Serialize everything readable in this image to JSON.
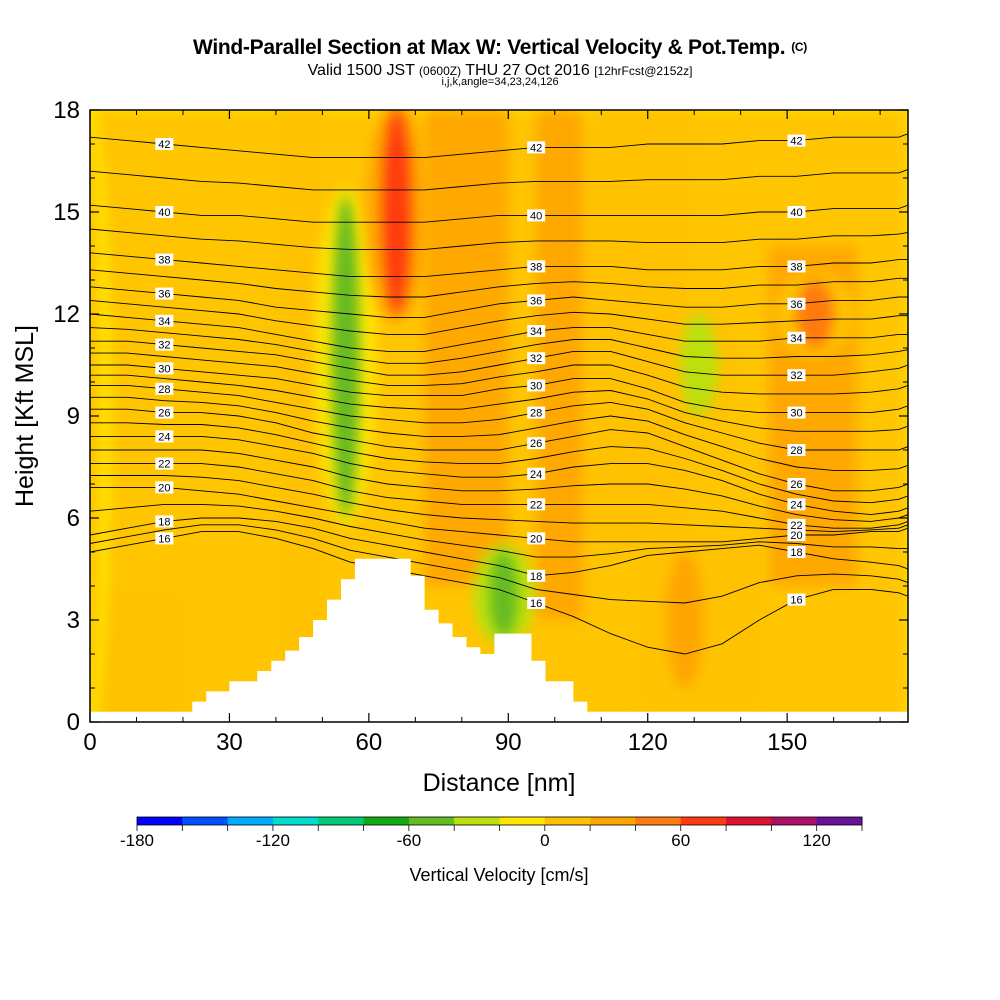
{
  "header": {
    "title": "Wind-Parallel Section at Max W: Vertical Velocity & Pot.Temp.",
    "copyright": "(C)",
    "valid_prefix": "Valid 1500 JST",
    "valid_utc": "(0600Z)",
    "valid_date": "THU 27 Oct 2016",
    "forecast": "[12hrFcst@2152z]",
    "indices": "i,j,k,angle=34,23,24,126"
  },
  "chart_data": {
    "type": "heatmap",
    "xlabel": "Distance [nm]",
    "ylabel": "Height [Kft MSL]",
    "xlim": [
      0,
      176
    ],
    "ylim": [
      0,
      18
    ],
    "x_ticks": [
      0,
      30,
      60,
      90,
      120,
      150
    ],
    "y_ticks": [
      0,
      3,
      6,
      9,
      12,
      15,
      18
    ],
    "x_tick_labels": [
      "0",
      "30",
      "60",
      "90",
      "120",
      "150"
    ],
    "y_tick_labels": [
      "0",
      "3",
      "6",
      "9",
      "12",
      "15",
      "18"
    ],
    "colorbar": {
      "label": "Vertical Velocity [cm/s]",
      "min": -180,
      "max": 140,
      "step": 20,
      "tick_values": [
        -180,
        -120,
        -60,
        0,
        60,
        120
      ],
      "tick_labels": [
        "-180",
        "-120",
        "-60",
        "0",
        "60",
        "120"
      ],
      "colors": [
        "#0000ff",
        "#0050ff",
        "#00aaff",
        "#00ddcc",
        "#00cc77",
        "#11aa11",
        "#66bb22",
        "#bbe011",
        "#ffe600",
        "#ffc200",
        "#ffa500",
        "#ff7a10",
        "#ff3a10",
        "#dd1133",
        "#aa1166",
        "#6a1199"
      ]
    },
    "vertical_velocity_features": [
      {
        "x": 0,
        "w": 2,
        "y0": 0,
        "y1": 18,
        "value": 10,
        "note": "broad weak ascent background"
      },
      {
        "x": 55,
        "w": 3,
        "y0": 6,
        "y1": 15.5,
        "value": -50
      },
      {
        "x": 66,
        "w": 3,
        "y0": 12,
        "y1": 18,
        "value": 60
      },
      {
        "x": 89,
        "w": 3,
        "y0": 2.5,
        "y1": 5,
        "value": -60
      },
      {
        "x": 128,
        "w": 4,
        "y0": 1,
        "y1": 5,
        "value": 30
      },
      {
        "x": 156,
        "w": 4,
        "y0": 11,
        "y1": 13,
        "value": 45
      },
      {
        "x": 131,
        "w": 4,
        "y0": 9,
        "y1": 12,
        "value": -25
      }
    ],
    "terrain_profile": {
      "x": [
        0,
        19,
        22,
        25,
        30,
        36,
        39,
        42,
        45,
        48,
        51,
        54,
        57,
        64,
        69,
        72,
        75,
        78,
        81,
        84,
        87,
        91,
        95,
        98,
        104,
        107,
        176
      ],
      "height": [
        0.3,
        0.3,
        0.6,
        0.9,
        1.2,
        1.5,
        1.8,
        2.1,
        2.5,
        3.0,
        3.6,
        4.2,
        4.8,
        4.8,
        4.3,
        3.3,
        2.9,
        2.5,
        2.2,
        2.0,
        2.6,
        2.6,
        1.8,
        1.2,
        0.6,
        0.3,
        0.3
      ]
    },
    "isentropes": [
      {
        "label": "16",
        "height": [
          5.0,
          5.2,
          5.4,
          5.6,
          5.6,
          5.4,
          5.1,
          4.7,
          4.5,
          4.3,
          4.1,
          3.9,
          3.5,
          3.1,
          2.6,
          2.2,
          2.0,
          2.3,
          3.0,
          3.6,
          3.9,
          3.9,
          3.8,
          3.7
        ]
      },
      {
        "label": "18",
        "height": [
          5.5,
          5.7,
          5.9,
          6.0,
          6.0,
          5.9,
          5.7,
          5.4,
          5.2,
          5.0,
          4.8,
          4.6,
          4.3,
          4.4,
          4.6,
          4.9,
          5.0,
          5.1,
          5.2,
          5.0,
          4.8,
          4.7,
          4.6,
          4.5
        ]
      },
      {
        "label": "20",
        "height": [
          6.9,
          6.9,
          6.9,
          6.8,
          6.7,
          6.5,
          6.3,
          6.1,
          5.9,
          5.7,
          5.6,
          5.5,
          5.4,
          5.3,
          5.3,
          5.3,
          5.3,
          5.3,
          5.4,
          5.5,
          5.5,
          5.6,
          5.6,
          5.7
        ]
      },
      {
        "label": "22",
        "height": [
          7.6,
          7.6,
          7.6,
          7.6,
          7.5,
          7.3,
          7.1,
          6.8,
          6.6,
          6.5,
          6.4,
          6.4,
          6.4,
          6.4,
          6.4,
          6.4,
          6.3,
          6.2,
          6.0,
          5.8,
          5.7,
          5.7,
          5.8,
          5.9
        ]
      },
      {
        "label": "24",
        "height": [
          8.4,
          8.4,
          8.4,
          8.4,
          8.3,
          8.1,
          7.9,
          7.6,
          7.4,
          7.3,
          7.2,
          7.2,
          7.3,
          7.5,
          7.6,
          7.6,
          7.4,
          7.1,
          6.7,
          6.4,
          6.2,
          6.1,
          6.2,
          6.3
        ]
      },
      {
        "label": "26",
        "height": [
          9.2,
          9.2,
          9.1,
          9.1,
          9.0,
          8.8,
          8.5,
          8.3,
          8.1,
          8.0,
          8.0,
          8.0,
          8.2,
          8.4,
          8.6,
          8.5,
          8.1,
          7.7,
          7.3,
          7.0,
          6.8,
          6.8,
          6.9,
          7.0
        ]
      },
      {
        "label": "28",
        "height": [
          9.9,
          9.9,
          9.8,
          9.7,
          9.6,
          9.4,
          9.2,
          9.0,
          8.9,
          8.8,
          8.8,
          8.9,
          9.1,
          9.3,
          9.4,
          9.2,
          8.8,
          8.5,
          8.2,
          8.0,
          8.0,
          8.0,
          8.0,
          8.1
        ]
      },
      {
        "label": "30",
        "height": [
          10.5,
          10.5,
          10.4,
          10.3,
          10.2,
          10.1,
          9.9,
          9.7,
          9.6,
          9.6,
          9.6,
          9.8,
          9.9,
          10.1,
          10.1,
          9.8,
          9.4,
          9.2,
          9.1,
          9.1,
          9.1,
          9.1,
          9.2,
          9.3
        ]
      },
      {
        "label": "32",
        "height": [
          11.2,
          11.2,
          11.1,
          11.0,
          10.9,
          10.8,
          10.6,
          10.4,
          10.2,
          10.2,
          10.3,
          10.5,
          10.7,
          10.9,
          10.9,
          10.6,
          10.3,
          10.2,
          10.2,
          10.2,
          10.2,
          10.3,
          10.4,
          10.5
        ]
      },
      {
        "label": "34",
        "height": [
          12.0,
          11.9,
          11.8,
          11.7,
          11.6,
          11.4,
          11.2,
          11.0,
          10.9,
          10.9,
          11.1,
          11.3,
          11.5,
          11.6,
          11.6,
          11.4,
          11.2,
          11.2,
          11.2,
          11.3,
          11.3,
          11.3,
          11.4,
          11.4
        ]
      },
      {
        "label": "36",
        "height": [
          12.8,
          12.7,
          12.6,
          12.5,
          12.4,
          12.2,
          12.1,
          12.0,
          11.9,
          11.9,
          12.1,
          12.3,
          12.4,
          12.5,
          12.4,
          12.3,
          12.2,
          12.2,
          12.3,
          12.3,
          12.4,
          12.4,
          12.5,
          12.5
        ]
      },
      {
        "label": "38",
        "height": [
          13.8,
          13.7,
          13.6,
          13.5,
          13.4,
          13.3,
          13.2,
          13.1,
          13.1,
          13.1,
          13.2,
          13.3,
          13.4,
          13.4,
          13.4,
          13.3,
          13.3,
          13.3,
          13.4,
          13.4,
          13.5,
          13.5,
          13.6,
          13.6
        ]
      },
      {
        "label": "40",
        "height": [
          15.2,
          15.1,
          15.0,
          14.9,
          14.9,
          14.8,
          14.7,
          14.7,
          14.7,
          14.7,
          14.8,
          14.9,
          14.9,
          14.9,
          14.9,
          14.9,
          14.9,
          14.9,
          15.0,
          15.0,
          15.1,
          15.1,
          15.1,
          15.2
        ]
      },
      {
        "label": "42",
        "height": [
          17.2,
          17.1,
          17.0,
          16.9,
          16.8,
          16.7,
          16.6,
          16.6,
          16.6,
          16.6,
          16.7,
          16.8,
          16.9,
          16.9,
          16.9,
          17.0,
          17.0,
          17.0,
          17.1,
          17.1,
          17.2,
          17.2,
          17.2,
          17.3
        ]
      }
    ],
    "isentrope_x": [
      0,
      8,
      16,
      24,
      32,
      40,
      48,
      56,
      64,
      72,
      80,
      88,
      96,
      104,
      112,
      120,
      128,
      136,
      144,
      152,
      160,
      168,
      174,
      176
    ]
  }
}
